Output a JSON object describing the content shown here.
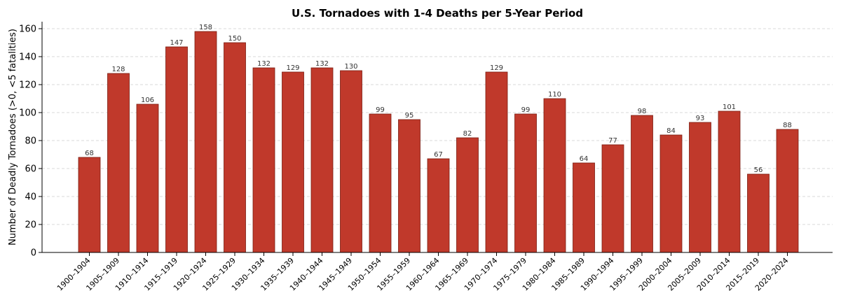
{
  "chart_data": {
    "type": "bar",
    "title": "U.S. Tornadoes with 1-4 Deaths per 5-Year Period",
    "xlabel": "",
    "ylabel": "Number of Deadly Tornadoes (>0, <5 fatalities)",
    "ylim": [
      0,
      165
    ],
    "yticks": [
      0,
      20,
      40,
      60,
      80,
      100,
      120,
      140,
      160
    ],
    "grid": "y-dashed",
    "bar_color": "#c0392b",
    "bar_edge_color": "#7b1d12",
    "categories": [
      "1900–1904",
      "1905–1909",
      "1910–1914",
      "1915–1919",
      "1920–1924",
      "1925–1929",
      "1930–1934",
      "1935–1939",
      "1940–1944",
      "1945–1949",
      "1950–1954",
      "1955–1959",
      "1960–1964",
      "1965–1969",
      "1970–1974",
      "1975–1979",
      "1980–1984",
      "1985–1989",
      "1990–1994",
      "1995–1999",
      "2000–2004",
      "2005–2009",
      "2010–2014",
      "2015–2019",
      "2020–2024"
    ],
    "values": [
      68,
      128,
      106,
      147,
      158,
      150,
      132,
      129,
      132,
      130,
      99,
      95,
      67,
      82,
      129,
      99,
      110,
      64,
      77,
      98,
      84,
      93,
      101,
      56,
      88
    ]
  }
}
